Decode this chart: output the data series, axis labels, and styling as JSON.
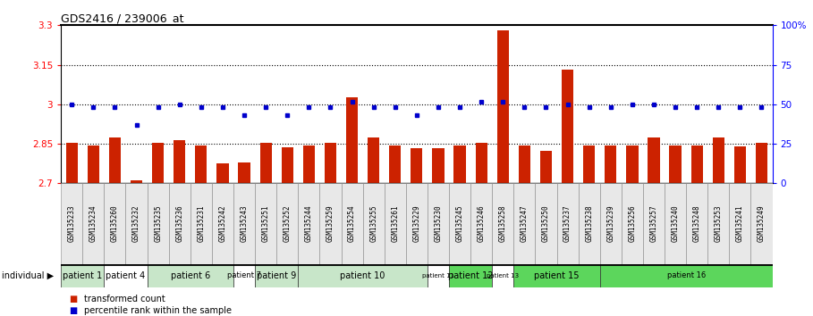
{
  "title": "GDS2416 / 239006_at",
  "samples": [
    "GSM135233",
    "GSM135234",
    "GSM135260",
    "GSM135232",
    "GSM135235",
    "GSM135236",
    "GSM135231",
    "GSM135242",
    "GSM135243",
    "GSM135251",
    "GSM135252",
    "GSM135244",
    "GSM135259",
    "GSM135254",
    "GSM135255",
    "GSM135261",
    "GSM135229",
    "GSM135230",
    "GSM135245",
    "GSM135246",
    "GSM135258",
    "GSM135247",
    "GSM135250",
    "GSM135237",
    "GSM135238",
    "GSM135239",
    "GSM135256",
    "GSM135257",
    "GSM135240",
    "GSM135248",
    "GSM135253",
    "GSM135241",
    "GSM135249"
  ],
  "bar_values": [
    2.855,
    2.845,
    2.875,
    2.712,
    2.855,
    2.865,
    2.845,
    2.776,
    2.779,
    2.855,
    2.835,
    2.845,
    2.854,
    3.025,
    2.875,
    2.844,
    2.834,
    2.834,
    2.844,
    2.855,
    3.28,
    2.844,
    2.822,
    3.13,
    2.844,
    2.844,
    2.844,
    2.875,
    2.845,
    2.845,
    2.875,
    2.84,
    2.855
  ],
  "percentile_values": [
    3.0,
    2.99,
    2.99,
    2.922,
    2.99,
    3.0,
    2.99,
    2.99,
    2.96,
    2.99,
    2.96,
    2.99,
    2.99,
    3.01,
    2.99,
    2.99,
    2.96,
    2.99,
    2.99,
    3.01,
    3.01,
    2.99,
    2.99,
    3.0,
    2.99,
    2.99,
    3.0,
    3.0,
    2.99,
    2.99,
    2.99,
    2.99,
    2.99
  ],
  "patients": [
    {
      "label": "patient 1",
      "start": 0,
      "end": 2,
      "color": "#c8e6c9",
      "fontsize": 7
    },
    {
      "label": "patient 4",
      "start": 2,
      "end": 4,
      "color": "#ffffff",
      "fontsize": 7
    },
    {
      "label": "patient 6",
      "start": 4,
      "end": 8,
      "color": "#c8e6c9",
      "fontsize": 7
    },
    {
      "label": "patient 7",
      "start": 8,
      "end": 9,
      "color": "#ffffff",
      "fontsize": 6
    },
    {
      "label": "patient 9",
      "start": 9,
      "end": 11,
      "color": "#c8e6c9",
      "fontsize": 7
    },
    {
      "label": "patient 10",
      "start": 11,
      "end": 17,
      "color": "#c8e6c9",
      "fontsize": 7
    },
    {
      "label": "patient 11",
      "start": 17,
      "end": 18,
      "color": "#ffffff",
      "fontsize": 5
    },
    {
      "label": "patient 12",
      "start": 18,
      "end": 20,
      "color": "#5cd65c",
      "fontsize": 7
    },
    {
      "label": "patient 13",
      "start": 20,
      "end": 21,
      "color": "#ffffff",
      "fontsize": 5
    },
    {
      "label": "patient 15",
      "start": 21,
      "end": 25,
      "color": "#5cd65c",
      "fontsize": 7
    },
    {
      "label": "patient 16",
      "start": 25,
      "end": 33,
      "color": "#5cd65c",
      "fontsize": 6
    }
  ],
  "ylim_left": [
    2.7,
    3.3
  ],
  "yticks_left": [
    2.7,
    2.85,
    3.0,
    3.15,
    3.3
  ],
  "ytick_labels_left": [
    "2.7",
    "2.85",
    "3",
    "3.15",
    "3.3"
  ],
  "yticks_right_pct": [
    0,
    25,
    50,
    75,
    100
  ],
  "ytick_labels_right": [
    "0",
    "25",
    "50",
    "75",
    "100%"
  ],
  "hlines": [
    2.85,
    3.0,
    3.15
  ],
  "bar_color": "#cc2200",
  "percentile_color": "#0000cc",
  "individual_label": "individual ▶"
}
